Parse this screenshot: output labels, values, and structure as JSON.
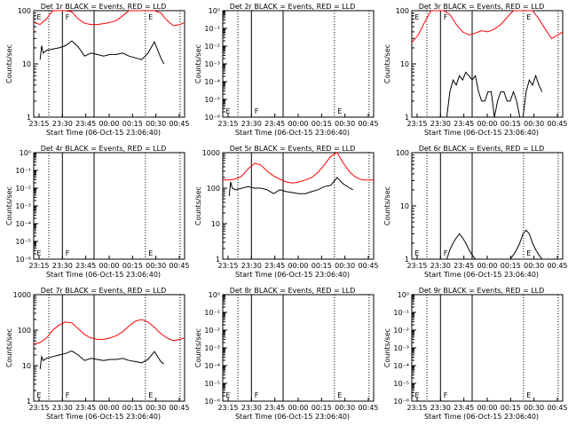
{
  "layout": {
    "rows": 3,
    "cols": 3
  },
  "chart_data": [
    {
      "type": "line",
      "title": "Det 1r BLACK = Events, RED = LLD",
      "xlabel": "Start Time (06-Oct-15 23:06:40)",
      "ylabel": "Counts/sec",
      "yscale": "log",
      "ylim": [
        1,
        100
      ],
      "yticks": [
        "1",
        "10",
        "100"
      ],
      "xticks": [
        "23:15",
        "23:30",
        "23:45",
        "00:00",
        "00:15",
        "00:30",
        "00:45"
      ],
      "markers": [
        "E",
        "F",
        "E"
      ],
      "series": [
        {
          "color": "#ff0000",
          "x": [
            0,
            4,
            8,
            12,
            16,
            20,
            24,
            28,
            32,
            36,
            40,
            44,
            48,
            52,
            56,
            60,
            64,
            68,
            72,
            76,
            80,
            84,
            88,
            92,
            95
          ],
          "y": [
            60,
            55,
            70,
            100,
            100,
            100,
            95,
            70,
            58,
            55,
            55,
            57,
            60,
            65,
            80,
            100,
            100,
            100,
            100,
            100,
            90,
            65,
            52,
            55,
            60
          ]
        },
        {
          "color": "#000000",
          "x": [
            4,
            5,
            6,
            8,
            12,
            16,
            20,
            24,
            28,
            32,
            36,
            40,
            44,
            48,
            52,
            56,
            60,
            64,
            68,
            72,
            76,
            80,
            82
          ],
          "y": [
            12,
            22,
            16,
            18,
            19,
            20,
            22,
            27,
            21,
            14,
            16,
            15,
            14,
            15,
            15,
            16,
            14,
            13,
            12,
            16,
            26,
            13,
            10
          ]
        }
      ]
    },
    {
      "type": "line",
      "title": "Det 2r BLACK = Events, RED = LLD",
      "xlabel": "Start Time (06-Oct-15 23:06:40)",
      "ylabel": "Counts/sec",
      "yscale": "log",
      "ylim": [
        1,
        1e-06
      ],
      "yticks": [
        "10⁻⁶",
        "10⁻⁵",
        "10⁻⁴",
        "10⁻³",
        "10⁻²",
        "10⁻¹",
        "10⁰"
      ],
      "xticks": [
        "23:15",
        "23:30",
        "23:45",
        "00:00",
        "00:15",
        "00:30",
        "00:45"
      ],
      "markers": [
        "E",
        "F",
        "E"
      ],
      "series": []
    },
    {
      "type": "line",
      "title": "Det 3r BLACK = Events, RED = LLD",
      "xlabel": "Start Time (06-Oct-15 23:06:40)",
      "ylabel": "Counts/sec",
      "yscale": "log",
      "ylim": [
        1,
        100
      ],
      "yticks": [
        "1",
        "10",
        "100"
      ],
      "xticks": [
        "23:15",
        "23:30",
        "23:45",
        "00:00",
        "00:15",
        "00:30",
        "00:45"
      ],
      "markers": [
        "E",
        "F",
        "E"
      ],
      "series": [
        {
          "color": "#ff0000",
          "x": [
            0,
            4,
            8,
            12,
            16,
            20,
            24,
            28,
            32,
            36,
            40,
            44,
            48,
            52,
            56,
            60,
            64,
            68,
            72,
            76,
            80,
            84,
            88,
            92,
            95
          ],
          "y": [
            25,
            35,
            60,
            100,
            100,
            100,
            85,
            55,
            40,
            35,
            38,
            42,
            40,
            45,
            55,
            75,
            100,
            100,
            100,
            100,
            70,
            45,
            30,
            35,
            40
          ]
        },
        {
          "color": "#000000",
          "x": [
            22,
            24,
            26,
            28,
            30,
            32,
            34,
            36,
            38,
            40,
            42,
            44,
            46,
            48,
            50,
            52,
            54,
            56,
            58,
            60,
            62,
            64,
            66,
            68,
            70,
            72,
            74,
            76,
            78,
            80,
            82
          ],
          "y": [
            1,
            3,
            5,
            4,
            6,
            5,
            7,
            6,
            5,
            6,
            3,
            2,
            2,
            3,
            3,
            1,
            2,
            3,
            3,
            2,
            2,
            3,
            2,
            1,
            1,
            3,
            5,
            4,
            6,
            4,
            3
          ]
        }
      ]
    },
    {
      "type": "line",
      "title": "Det 4r BLACK = Events, RED = LLD",
      "xlabel": "Start Time (06-Oct-15 23:06:40)",
      "ylabel": "Counts/sec",
      "yscale": "log",
      "ylim": [
        1,
        1e-06
      ],
      "yticks": [
        "10⁻⁶",
        "10⁻⁵",
        "10⁻⁴",
        "10⁻³",
        "10⁻²",
        "10⁻¹",
        "10⁰"
      ],
      "xticks": [
        "23:15",
        "23:30",
        "23:45",
        "00:00",
        "00:15",
        "00:30",
        "00:45"
      ],
      "markers": [
        "E",
        "F",
        "E"
      ],
      "series": []
    },
    {
      "type": "line",
      "title": "Det 5r BLACK = Events, RED = LLD",
      "xlabel": "Start Time (06-Oct-15 23:06:40)",
      "ylabel": "Counts/sec",
      "yscale": "log",
      "ylim": [
        1,
        1000
      ],
      "yticks": [
        "1",
        "10",
        "100",
        "1000"
      ],
      "xticks": [
        "23:15",
        "23:30",
        "23:45",
        "00:00",
        "00:15",
        "00:30",
        "00:45"
      ],
      "markers": [],
      "series": [
        {
          "color": "#ff0000",
          "x": [
            0,
            4,
            8,
            12,
            16,
            20,
            24,
            28,
            32,
            36,
            40,
            44,
            48,
            52,
            56,
            60,
            64,
            68,
            72,
            76,
            80,
            84,
            88,
            92,
            95
          ],
          "y": [
            170,
            170,
            180,
            220,
            350,
            500,
            450,
            300,
            220,
            180,
            150,
            140,
            150,
            170,
            200,
            280,
            450,
            800,
            1000,
            500,
            280,
            200,
            170,
            170,
            170
          ]
        },
        {
          "color": "#000000",
          "x": [
            4,
            5,
            6,
            8,
            12,
            16,
            20,
            24,
            28,
            32,
            36,
            40,
            44,
            48,
            52,
            56,
            60,
            64,
            68,
            72,
            76,
            80,
            82
          ],
          "y": [
            60,
            150,
            100,
            90,
            100,
            110,
            100,
            100,
            90,
            70,
            90,
            80,
            75,
            70,
            70,
            80,
            90,
            110,
            120,
            200,
            130,
            100,
            90
          ]
        }
      ]
    },
    {
      "type": "line",
      "title": "Det 6r BLACK = Events, RED = LLD",
      "xlabel": "Start Time (06-Oct-15 23:06:40)",
      "ylabel": "Counts/sec",
      "yscale": "log",
      "ylim": [
        1,
        100
      ],
      "yticks": [
        "1",
        "10",
        "100"
      ],
      "xticks": [
        "23:15",
        "23:30",
        "23:45",
        "00:00",
        "00:15",
        "00:30",
        "00:45"
      ],
      "markers": [
        "E",
        "F",
        "E"
      ],
      "series": [
        {
          "color": "#000000",
          "x": [
            22,
            24,
            26,
            28,
            30,
            32,
            34,
            36,
            38,
            40,
            42,
            44,
            46,
            48,
            50,
            52,
            54,
            56,
            58,
            60,
            62,
            64,
            66,
            68,
            70,
            72,
            74,
            76,
            78,
            80,
            82
          ],
          "y": [
            1,
            1.5,
            2,
            2.5,
            3,
            2.5,
            2,
            1.5,
            1.2,
            1,
            1,
            1,
            1,
            1,
            1,
            1,
            1,
            1,
            1,
            1,
            1,
            1.2,
            1.5,
            2,
            3,
            3.5,
            3,
            2,
            1.5,
            1.2,
            1
          ]
        }
      ]
    },
    {
      "type": "line",
      "title": "Det 7r BLACK = Events, RED = LLD",
      "xlabel": "Start Time (06-Oct-15 23:06:40)",
      "ylabel": "Counts/sec",
      "yscale": "log",
      "ylim": [
        1,
        1000
      ],
      "yticks": [
        "1",
        "10",
        "100",
        "1000"
      ],
      "xticks": [
        "23:15",
        "23:30",
        "23:45",
        "00:00",
        "00:15",
        "00:30",
        "00:45"
      ],
      "markers": [
        "E",
        "F",
        "E"
      ],
      "series": [
        {
          "color": "#ff0000",
          "x": [
            0,
            4,
            8,
            12,
            16,
            20,
            24,
            28,
            32,
            36,
            40,
            44,
            48,
            52,
            56,
            60,
            64,
            68,
            72,
            76,
            80,
            84,
            88,
            92,
            95
          ],
          "y": [
            40,
            45,
            60,
            100,
            140,
            170,
            160,
            110,
            75,
            60,
            55,
            55,
            60,
            70,
            90,
            130,
            180,
            200,
            170,
            120,
            80,
            60,
            50,
            55,
            60
          ]
        },
        {
          "color": "#000000",
          "x": [
            4,
            5,
            6,
            8,
            12,
            16,
            20,
            24,
            28,
            32,
            36,
            40,
            44,
            48,
            52,
            56,
            60,
            64,
            68,
            72,
            76,
            80,
            82
          ],
          "y": [
            8,
            18,
            14,
            16,
            18,
            20,
            22,
            26,
            20,
            14,
            16,
            15,
            14,
            15,
            15,
            16,
            14,
            13,
            12,
            15,
            25,
            13,
            11
          ]
        }
      ]
    },
    {
      "type": "line",
      "title": "Det 8r BLACK = Events, RED = LLD",
      "xlabel": "Start Time (06-Oct-15 23:06:40)",
      "ylabel": "Counts/sec",
      "yscale": "log",
      "ylim": [
        1,
        1e-06
      ],
      "yticks": [
        "10⁻⁶",
        "10⁻⁵",
        "10⁻⁴",
        "10⁻³",
        "10⁻²",
        "10⁻¹",
        "10⁰"
      ],
      "xticks": [
        "23:15",
        "23:30",
        "23:45",
        "00:00",
        "00:15",
        "00:30",
        "00:45"
      ],
      "markers": [
        "E",
        "F",
        "E"
      ],
      "series": []
    },
    {
      "type": "line",
      "title": "Det 9r BLACK = Events, RED = LLD",
      "xlabel": "Start Time (06-Oct-15 23:06:40)",
      "ylabel": "Counts/sec",
      "yscale": "log",
      "ylim": [
        1,
        1e-06
      ],
      "yticks": [
        "10⁻⁶",
        "10⁻⁵",
        "10⁻⁴",
        "10⁻³",
        "10⁻²",
        "10⁻¹",
        "10⁰"
      ],
      "xticks": [
        "23:15",
        "23:30",
        "23:45",
        "00:00",
        "00:15",
        "00:30",
        "00:45"
      ],
      "markers": [
        "E",
        "F",
        "E"
      ],
      "series": []
    }
  ]
}
